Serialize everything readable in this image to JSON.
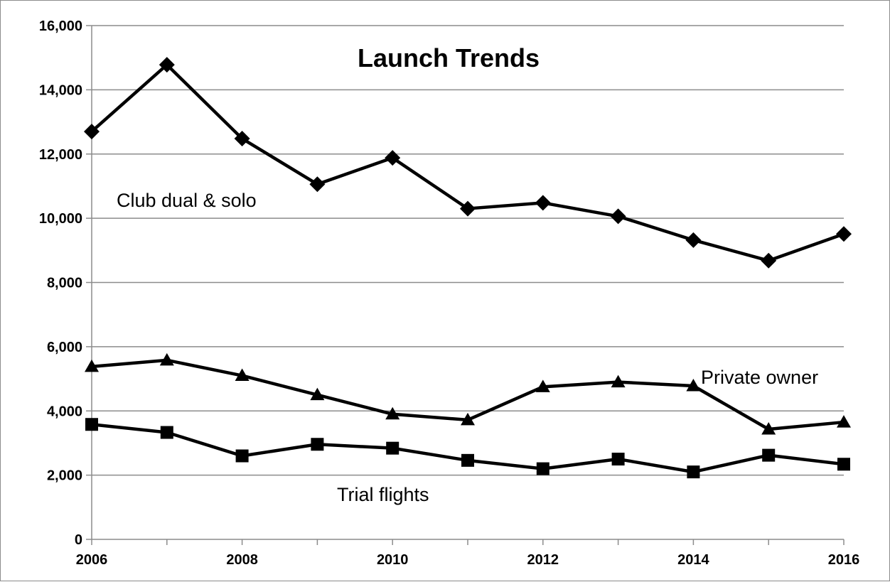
{
  "chart_data": {
    "type": "line",
    "title": "Launch Trends",
    "xlabel": "",
    "ylabel": "",
    "x": [
      2006,
      2007,
      2008,
      2009,
      2010,
      2011,
      2012,
      2013,
      2014,
      2015,
      2016
    ],
    "xlim": [
      2006,
      2016
    ],
    "ylim": [
      0,
      16000
    ],
    "x_ticks": [
      "2006",
      "2008",
      "2010",
      "2012",
      "2014",
      "2016"
    ],
    "y_ticks": [
      "0",
      "2,000",
      "4,000",
      "6,000",
      "8,000",
      "10,000",
      "12,000",
      "14,000",
      "16,000"
    ],
    "grid": "horizontal",
    "legend": "none",
    "series": [
      {
        "name": "Club dual & solo",
        "marker": "diamond",
        "color": "#000000",
        "values": [
          12700,
          14780,
          12480,
          11060,
          11880,
          10300,
          10480,
          10060,
          9320,
          8680,
          9510
        ]
      },
      {
        "name": "Private owner",
        "marker": "triangle",
        "color": "#000000",
        "values": [
          5380,
          5580,
          5100,
          4500,
          3900,
          3720,
          4750,
          4900,
          4780,
          3430,
          3650
        ]
      },
      {
        "name": "Trial flights",
        "marker": "square",
        "color": "#000000",
        "values": [
          3580,
          3330,
          2600,
          2960,
          2840,
          2460,
          2200,
          2500,
          2100,
          2620,
          2340
        ]
      }
    ]
  }
}
